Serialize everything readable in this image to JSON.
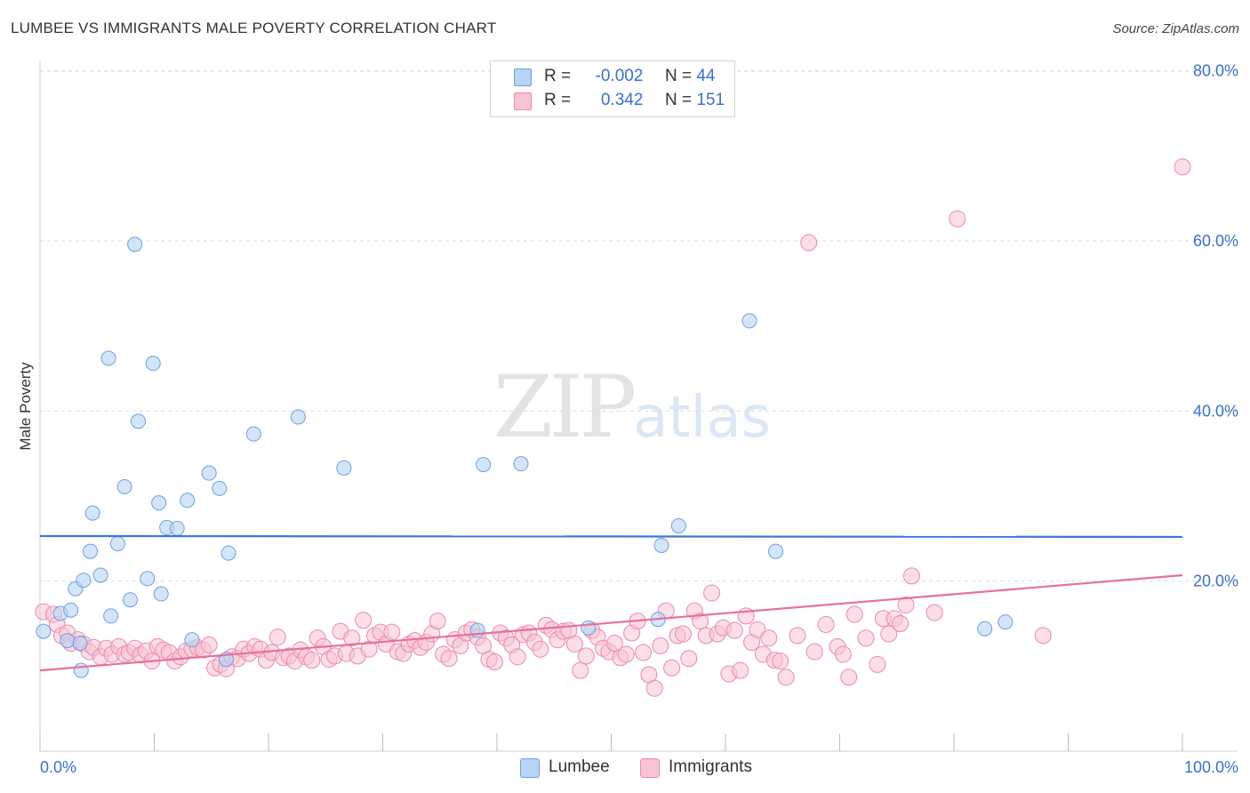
{
  "title": "LUMBEE VS IMMIGRANTS MALE POVERTY CORRELATION CHART",
  "source": "Source: ZipAtlas.com",
  "watermark": {
    "zip": "ZIP",
    "atlas": "atlas"
  },
  "legend": {
    "rows": [
      {
        "r_label": "R =",
        "r_value": "-0.002",
        "n_label": "N =",
        "n_value": "44"
      },
      {
        "r_label": "R =",
        "r_value": "0.342",
        "n_label": "N =",
        "n_value": "151"
      }
    ]
  },
  "colors": {
    "lumbee_fill": "#b7d3f5",
    "lumbee_stroke": "#6d9ee0",
    "lumbee_line": "#3a78d4",
    "imm_fill": "#f8c3d4",
    "imm_stroke": "#e98aac",
    "imm_line": "#e8709a",
    "axis_text": "#3a6fcc",
    "grid": "#dddddd"
  },
  "chart_data": {
    "type": "scatter",
    "title": "LUMBEE VS IMMIGRANTS MALE POVERTY CORRELATION CHART",
    "xlabel": "",
    "ylabel": "Male Poverty",
    "xlim": [
      0,
      100
    ],
    "ylim": [
      0,
      80
    ],
    "x_tick_labels": [
      "0.0%",
      "100.0%"
    ],
    "y_ticks": [
      20,
      40,
      60,
      80
    ],
    "y_tick_labels": [
      "20.0%",
      "40.0%",
      "60.0%",
      "80.0%"
    ],
    "grid": true,
    "legend_position": "bottom",
    "series": [
      {
        "name": "Lumbee",
        "r": -0.002,
        "n": 44,
        "trend": {
          "x": [
            0,
            100
          ],
          "y": [
            25.3,
            25.2
          ]
        },
        "points": [
          [
            0.3,
            14.1
          ],
          [
            1.8,
            16.2
          ],
          [
            2.4,
            13.0
          ],
          [
            2.7,
            16.6
          ],
          [
            3.1,
            19.1
          ],
          [
            3.5,
            12.7
          ],
          [
            3.6,
            9.5
          ],
          [
            3.8,
            20.1
          ],
          [
            4.4,
            23.5
          ],
          [
            4.6,
            28.0
          ],
          [
            5.3,
            20.7
          ],
          [
            6.2,
            15.9
          ],
          [
            6.0,
            46.2
          ],
          [
            6.8,
            24.4
          ],
          [
            7.4,
            31.1
          ],
          [
            7.9,
            17.8
          ],
          [
            8.3,
            59.6
          ],
          [
            8.6,
            38.8
          ],
          [
            9.4,
            20.3
          ],
          [
            9.9,
            45.6
          ],
          [
            10.4,
            29.2
          ],
          [
            10.6,
            18.5
          ],
          [
            11.1,
            26.3
          ],
          [
            12.0,
            26.2
          ],
          [
            12.9,
            29.5
          ],
          [
            13.3,
            13.1
          ],
          [
            14.8,
            32.7
          ],
          [
            15.7,
            30.9
          ],
          [
            16.3,
            10.8
          ],
          [
            16.5,
            23.3
          ],
          [
            18.7,
            37.3
          ],
          [
            22.6,
            39.3
          ],
          [
            26.6,
            33.3
          ],
          [
            38.3,
            14.2
          ],
          [
            38.8,
            33.7
          ],
          [
            42.1,
            33.8
          ],
          [
            48.0,
            14.5
          ],
          [
            54.1,
            15.5
          ],
          [
            54.4,
            24.2
          ],
          [
            55.9,
            26.5
          ],
          [
            62.1,
            50.6
          ],
          [
            64.4,
            23.5
          ],
          [
            82.7,
            14.4
          ],
          [
            84.5,
            15.2
          ]
        ]
      },
      {
        "name": "Immigrants",
        "r": 0.342,
        "n": 151,
        "trend": {
          "x": [
            0,
            100
          ],
          "y": [
            9.5,
            20.7
          ]
        },
        "points": [
          [
            0.3,
            16.4
          ],
          [
            1.2,
            16.1
          ],
          [
            1.5,
            14.9
          ],
          [
            1.9,
            13.6
          ],
          [
            2.4,
            13.9
          ],
          [
            2.7,
            12.7
          ],
          [
            3.3,
            13.1
          ],
          [
            3.8,
            12.6
          ],
          [
            4.3,
            11.7
          ],
          [
            4.7,
            12.2
          ],
          [
            5.3,
            11.1
          ],
          [
            5.8,
            12.1
          ],
          [
            6.3,
            11.4
          ],
          [
            6.9,
            12.3
          ],
          [
            7.4,
            11.4
          ],
          [
            7.8,
            11.6
          ],
          [
            8.3,
            12.1
          ],
          [
            8.8,
            11.3
          ],
          [
            9.3,
            11.8
          ],
          [
            9.8,
            10.6
          ],
          [
            10.3,
            12.3
          ],
          [
            10.8,
            11.9
          ],
          [
            11.3,
            11.6
          ],
          [
            11.8,
            10.6
          ],
          [
            12.3,
            11.1
          ],
          [
            12.8,
            11.8
          ],
          [
            13.3,
            12.0
          ],
          [
            13.8,
            12.2
          ],
          [
            14.3,
            11.9
          ],
          [
            14.8,
            12.5
          ],
          [
            15.3,
            9.8
          ],
          [
            15.8,
            10.2
          ],
          [
            16.3,
            9.7
          ],
          [
            16.8,
            11.1
          ],
          [
            17.3,
            10.9
          ],
          [
            17.8,
            12.0
          ],
          [
            18.3,
            11.5
          ],
          [
            18.8,
            12.3
          ],
          [
            19.3,
            12.0
          ],
          [
            19.8,
            10.7
          ],
          [
            20.3,
            11.6
          ],
          [
            20.8,
            13.4
          ],
          [
            21.3,
            11.0
          ],
          [
            21.8,
            11.2
          ],
          [
            22.3,
            10.6
          ],
          [
            22.8,
            11.9
          ],
          [
            23.3,
            11.1
          ],
          [
            23.8,
            10.7
          ],
          [
            24.3,
            13.3
          ],
          [
            24.8,
            12.3
          ],
          [
            25.3,
            10.8
          ],
          [
            25.8,
            11.2
          ],
          [
            26.3,
            14.1
          ],
          [
            26.8,
            11.5
          ],
          [
            27.3,
            13.3
          ],
          [
            27.8,
            11.2
          ],
          [
            28.3,
            15.4
          ],
          [
            28.8,
            12.0
          ],
          [
            29.3,
            13.6
          ],
          [
            29.8,
            14.0
          ],
          [
            30.3,
            12.6
          ],
          [
            30.8,
            14.0
          ],
          [
            31.3,
            11.7
          ],
          [
            31.8,
            11.5
          ],
          [
            32.3,
            12.6
          ],
          [
            32.8,
            13.0
          ],
          [
            33.3,
            12.2
          ],
          [
            33.8,
            12.8
          ],
          [
            34.3,
            13.8
          ],
          [
            34.8,
            15.3
          ],
          [
            35.3,
            11.4
          ],
          [
            35.8,
            10.9
          ],
          [
            36.3,
            13.1
          ],
          [
            36.8,
            12.4
          ],
          [
            37.3,
            13.9
          ],
          [
            37.8,
            14.3
          ],
          [
            38.3,
            13.4
          ],
          [
            38.8,
            12.4
          ],
          [
            39.3,
            10.8
          ],
          [
            39.8,
            10.5
          ],
          [
            40.3,
            13.9
          ],
          [
            40.8,
            13.3
          ],
          [
            41.3,
            12.5
          ],
          [
            41.8,
            11.1
          ],
          [
            42.3,
            13.7
          ],
          [
            42.8,
            13.9
          ],
          [
            43.3,
            12.8
          ],
          [
            43.8,
            12.0
          ],
          [
            44.3,
            14.8
          ],
          [
            44.8,
            14.3
          ],
          [
            45.3,
            13.1
          ],
          [
            45.8,
            14.1
          ],
          [
            46.3,
            14.2
          ],
          [
            46.8,
            12.6
          ],
          [
            47.3,
            9.5
          ],
          [
            47.8,
            11.2
          ],
          [
            48.3,
            14.2
          ],
          [
            48.8,
            13.4
          ],
          [
            49.3,
            12.1
          ],
          [
            49.8,
            11.7
          ],
          [
            50.3,
            12.7
          ],
          [
            50.8,
            11.0
          ],
          [
            51.3,
            11.4
          ],
          [
            51.8,
            13.9
          ],
          [
            52.3,
            15.3
          ],
          [
            52.8,
            11.6
          ],
          [
            53.3,
            9.0
          ],
          [
            53.8,
            7.4
          ],
          [
            54.3,
            12.4
          ],
          [
            54.8,
            16.5
          ],
          [
            55.3,
            9.8
          ],
          [
            55.8,
            13.6
          ],
          [
            56.3,
            13.8
          ],
          [
            56.8,
            10.9
          ],
          [
            57.3,
            16.5
          ],
          [
            57.8,
            15.3
          ],
          [
            58.3,
            13.6
          ],
          [
            58.8,
            18.6
          ],
          [
            59.3,
            13.8
          ],
          [
            59.8,
            14.5
          ],
          [
            60.3,
            9.1
          ],
          [
            60.8,
            14.2
          ],
          [
            61.3,
            9.5
          ],
          [
            61.8,
            15.9
          ],
          [
            62.3,
            12.8
          ],
          [
            62.8,
            14.3
          ],
          [
            63.3,
            11.4
          ],
          [
            63.8,
            13.3
          ],
          [
            64.3,
            10.7
          ],
          [
            64.8,
            10.6
          ],
          [
            65.3,
            8.7
          ],
          [
            66.3,
            13.6
          ],
          [
            67.3,
            59.8
          ],
          [
            67.8,
            11.7
          ],
          [
            68.8,
            14.9
          ],
          [
            69.8,
            12.3
          ],
          [
            70.3,
            11.4
          ],
          [
            70.8,
            8.7
          ],
          [
            71.3,
            16.1
          ],
          [
            72.3,
            13.3
          ],
          [
            73.3,
            10.2
          ],
          [
            73.8,
            15.6
          ],
          [
            74.3,
            13.8
          ],
          [
            74.8,
            15.6
          ],
          [
            75.3,
            15.0
          ],
          [
            75.8,
            17.2
          ],
          [
            76.3,
            20.6
          ],
          [
            78.3,
            16.3
          ],
          [
            80.3,
            62.6
          ],
          [
            87.8,
            13.6
          ],
          [
            100.0,
            68.7
          ]
        ]
      }
    ]
  }
}
